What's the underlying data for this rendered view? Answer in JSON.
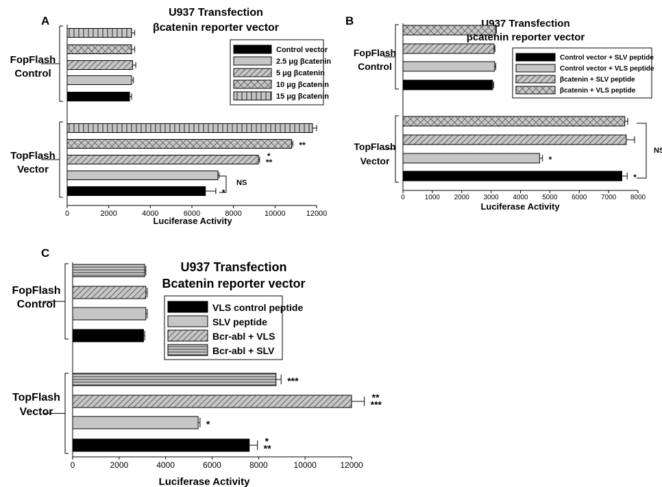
{
  "colors": {
    "black": "#000000",
    "gray": "#c6c6c6",
    "pattern_bg": "#c6c6c6",
    "pattern_line": "#444444",
    "axis": "#000000"
  },
  "chart_data": [
    {
      "panel": "A",
      "type": "bar",
      "orientation": "horizontal",
      "title": "U937 Transfection",
      "subtitle": "βcatenin reporter vector",
      "xlabel": "Luciferase Activity",
      "xlim": [
        0,
        12000
      ],
      "xticks": [
        "0",
        "2000",
        "4000",
        "6000",
        "8000",
        "10000",
        "12000"
      ],
      "groups": [
        {
          "label_line1": "FopFlash",
          "label_line2": "Control"
        },
        {
          "label_line1": "TopFlash",
          "label_line2": "Vector"
        }
      ],
      "legend_placement": "top-right",
      "series": [
        {
          "name": "Control vector",
          "pattern": "solid-black",
          "values": [
            3000,
            6650
          ],
          "errors": [
            100,
            500
          ],
          "sig": [
            "",
            "*"
          ]
        },
        {
          "name": "2.5 μg βcatenin",
          "pattern": "solid-gray",
          "values": [
            3100,
            7250
          ],
          "errors": [
            90,
            60
          ],
          "sig": [
            "",
            ""
          ]
        },
        {
          "name": "5 μg βcatenin",
          "pattern": "diagonal",
          "values": [
            3150,
            9200
          ],
          "errors": [
            150,
            60
          ],
          "sig": [
            "",
            "* **"
          ]
        },
        {
          "name": "10 μg βcatenin",
          "pattern": "crosshatch",
          "values": [
            3100,
            10800
          ],
          "errors": [
            150,
            60
          ],
          "sig": [
            "",
            "**"
          ]
        },
        {
          "name": "15 μg βcatenin",
          "pattern": "vertical",
          "values": [
            3100,
            11800
          ],
          "errors": [
            150,
            200
          ],
          "sig": [
            "",
            ""
          ]
        }
      ],
      "annotations": [
        "NS"
      ]
    },
    {
      "panel": "B",
      "type": "bar",
      "orientation": "horizontal",
      "title": "U937 Transfection",
      "subtitle": "βcatenin reporter vector",
      "xlabel": "Luciferase Activity",
      "xlim": [
        0,
        8000
      ],
      "xticks": [
        "0",
        "1000",
        "2000",
        "3000",
        "4000",
        "5000",
        "6000",
        "7000",
        "8000"
      ],
      "groups": [
        {
          "label_line1": "FopFlash",
          "label_line2": "Control"
        },
        {
          "label_line1": "TopFlash",
          "label_line2": "Vector"
        }
      ],
      "legend_placement": "right",
      "series": [
        {
          "name": "Control vector + SLV peptide",
          "pattern": "solid-black",
          "values": [
            3050,
            7450
          ],
          "errors": [
            40,
            180
          ],
          "sig": [
            "",
            "*"
          ]
        },
        {
          "name": "Control vector + VLS peptide",
          "pattern": "solid-gray",
          "values": [
            3120,
            4650
          ],
          "errors": [
            40,
            100
          ],
          "sig": [
            "",
            "*"
          ]
        },
        {
          "name": "βcatenin + SLV peptide",
          "pattern": "diagonal",
          "values": [
            3100,
            7600
          ],
          "errors": [
            30,
            280
          ],
          "sig": [
            "",
            ""
          ]
        },
        {
          "name": "βcatenin + VLS peptide",
          "pattern": "crosshatch",
          "values": [
            3150,
            7550
          ],
          "errors": [
            30,
            100
          ],
          "sig": [
            "",
            ""
          ]
        }
      ],
      "annotations": [
        "NS"
      ]
    },
    {
      "panel": "C",
      "type": "bar",
      "orientation": "horizontal",
      "title": "U937 Transfection",
      "subtitle": "Bcatenin reporter vector",
      "xlabel": "Luciferase Activity",
      "xlim": [
        0,
        12000
      ],
      "xticks": [
        "0",
        "2000",
        "4000",
        "6000",
        "8000",
        "10000",
        "12000"
      ],
      "groups": [
        {
          "label_line1": "FopFlash",
          "label_line2": "Control"
        },
        {
          "label_line1": "TopFlash",
          "label_line2": "Vector"
        }
      ],
      "legend_placement": "center",
      "series": [
        {
          "name": "VLS control peptide",
          "pattern": "solid-black",
          "values": [
            3050,
            7600
          ],
          "errors": [
            50,
            350
          ],
          "sig": [
            "",
            "* **"
          ]
        },
        {
          "name": "SLV peptide",
          "pattern": "solid-gray",
          "values": [
            3150,
            5400
          ],
          "errors": [
            60,
            80
          ],
          "sig": [
            "",
            "*"
          ]
        },
        {
          "name": "Bcr-abl + VLS",
          "pattern": "diagonal",
          "values": [
            3150,
            12000
          ],
          "errors": [
            60,
            550
          ],
          "sig": [
            "",
            "** ***"
          ]
        },
        {
          "name": "Bcr-abl + SLV",
          "pattern": "horizontal",
          "values": [
            3100,
            8750
          ],
          "errors": [
            50,
            220
          ],
          "sig": [
            "",
            "***"
          ]
        }
      ],
      "annotations": []
    }
  ]
}
